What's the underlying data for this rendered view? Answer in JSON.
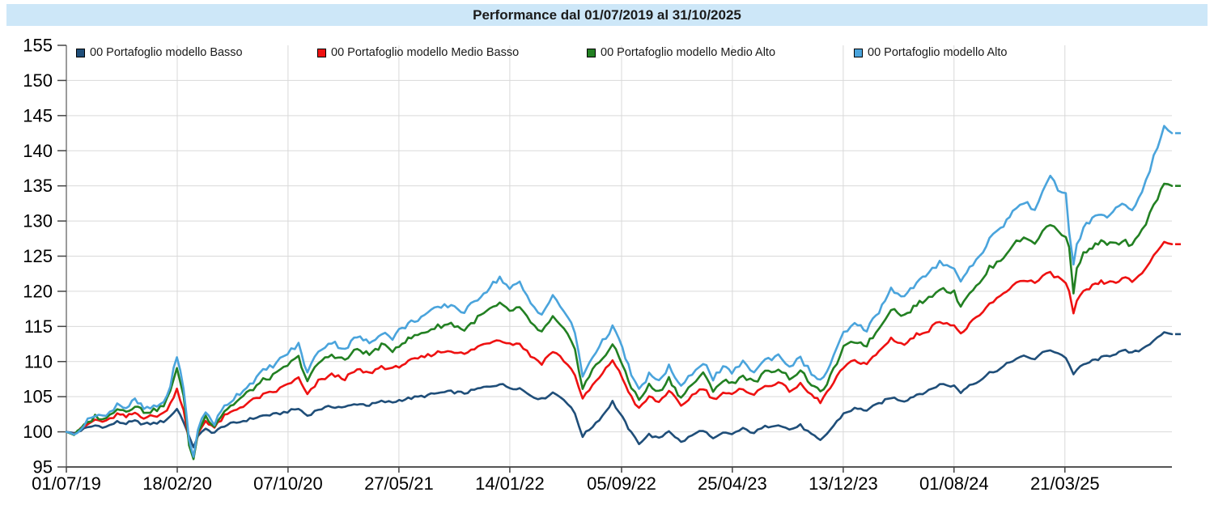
{
  "header": {
    "title": "Performance dal 01/07/2019 al 31/10/2025"
  },
  "style": {
    "page_bg": "#ffffff",
    "title_bg": "#cde7f8",
    "title_color": "#1b1b1b",
    "grid_color": "#d9d9d9",
    "axis_color": "#7a7a7a",
    "bottom_axis_color": "#555555",
    "tick_color": "#444444",
    "tick_label_color": "#000000",
    "legend_text_color": "#1a1a1a"
  },
  "legend": {
    "items": [
      {
        "label": "00 Portafoglio modello Basso",
        "color": "#1f4e79"
      },
      {
        "label": "00 Portafoglio modello Medio Basso",
        "color": "#ee1111"
      },
      {
        "label": "00 Portafoglio modello Medio Alto",
        "color": "#228022"
      },
      {
        "label": "00 Portafoglio modello Alto",
        "color": "#4aa4dc"
      }
    ]
  },
  "chart_data": {
    "type": "line",
    "title": "Performance dal 01/07/2019 al 31/10/2025",
    "x_mode": "fraction_of_date_span",
    "span": {
      "start": "01/07/2019",
      "end": "31/10/2025"
    },
    "ylim": [
      95,
      155
    ],
    "y_ticks": [
      95,
      100,
      105,
      110,
      115,
      120,
      125,
      130,
      135,
      140,
      145,
      150,
      155
    ],
    "grid": true,
    "legend_position": "top-inside",
    "x_ticks": [
      {
        "label": "01/07/19",
        "f": 0.0
      },
      {
        "label": "18/02/20",
        "f": 0.1003
      },
      {
        "label": "07/10/20",
        "f": 0.2005
      },
      {
        "label": "27/05/21",
        "f": 0.3008
      },
      {
        "label": "14/01/22",
        "f": 0.4011
      },
      {
        "label": "05/09/22",
        "f": 0.5022
      },
      {
        "label": "25/04/23",
        "f": 0.6024
      },
      {
        "label": "13/12/23",
        "f": 0.7027
      },
      {
        "label": "01/08/24",
        "f": 0.8029
      },
      {
        "label": "21/03/25",
        "f": 0.9032
      }
    ],
    "x": [
      0.0,
      0.007,
      0.016,
      0.026,
      0.036,
      0.046,
      0.054,
      0.062,
      0.07,
      0.079,
      0.088,
      0.094,
      0.1,
      0.106,
      0.111,
      0.115,
      0.119,
      0.126,
      0.134,
      0.143,
      0.154,
      0.166,
      0.178,
      0.19,
      0.2,
      0.21,
      0.218,
      0.228,
      0.24,
      0.252,
      0.263,
      0.274,
      0.285,
      0.295,
      0.301,
      0.312,
      0.324,
      0.336,
      0.348,
      0.36,
      0.372,
      0.383,
      0.392,
      0.401,
      0.41,
      0.42,
      0.43,
      0.44,
      0.45,
      0.46,
      0.467,
      0.476,
      0.485,
      0.494,
      0.503,
      0.511,
      0.518,
      0.527,
      0.536,
      0.545,
      0.556,
      0.566,
      0.576,
      0.585,
      0.594,
      0.602,
      0.612,
      0.622,
      0.632,
      0.644,
      0.654,
      0.664,
      0.674,
      0.682,
      0.691,
      0.703,
      0.713,
      0.724,
      0.735,
      0.746,
      0.758,
      0.769,
      0.78,
      0.79,
      0.803,
      0.809,
      0.817,
      0.826,
      0.835,
      0.845,
      0.856,
      0.866,
      0.876,
      0.883,
      0.89,
      0.897,
      0.904,
      0.907,
      0.911,
      0.914,
      0.92,
      0.928,
      0.936,
      0.944,
      0.952,
      0.958,
      0.964,
      0.973,
      0.98,
      0.987,
      0.993,
      1.0
    ],
    "series": [
      {
        "name": "00 Portafoglio modello Basso",
        "color": "#1f4e79",
        "jitter": 0.2,
        "values": [
          100.0,
          99.8,
          100.4,
          100.9,
          100.7,
          101.4,
          101.2,
          101.5,
          101.1,
          101.2,
          101.5,
          102.2,
          103.3,
          101.5,
          99.2,
          97.9,
          99.5,
          100.3,
          99.9,
          100.9,
          101.3,
          101.8,
          102.3,
          102.5,
          102.9,
          103.3,
          102.3,
          103.2,
          103.6,
          103.5,
          104.0,
          103.8,
          104.3,
          104.2,
          104.5,
          104.8,
          105.1,
          105.5,
          105.7,
          105.5,
          106.1,
          106.5,
          106.8,
          106.3,
          106.2,
          105.2,
          104.6,
          105.6,
          104.7,
          102.6,
          99.4,
          100.8,
          102.3,
          104.3,
          102.0,
          99.8,
          98.4,
          99.6,
          99.0,
          100.2,
          98.5,
          99.5,
          100.3,
          98.9,
          99.8,
          99.7,
          100.4,
          99.9,
          100.7,
          101.1,
          100.3,
          100.9,
          99.6,
          98.7,
          100.3,
          102.6,
          103.3,
          103.1,
          104.0,
          104.9,
          104.4,
          105.3,
          105.8,
          106.8,
          106.5,
          105.6,
          106.7,
          107.3,
          108.4,
          109.0,
          110.2,
          110.7,
          110.4,
          111.2,
          111.7,
          111.2,
          110.6,
          109.5,
          108.3,
          108.8,
          109.5,
          110.1,
          110.5,
          110.9,
          111.3,
          111.5,
          111.2,
          111.8,
          112.6,
          113.5,
          114.1,
          113.9
        ]
      },
      {
        "name": "00 Portafoglio modello Medio Basso",
        "color": "#ee1111",
        "jitter": 0.27,
        "values": [
          100.0,
          99.7,
          100.7,
          101.7,
          101.4,
          102.5,
          102.1,
          102.7,
          102.1,
          102.2,
          102.6,
          104.0,
          106.2,
          103.0,
          98.5,
          96.3,
          99.8,
          101.6,
          100.6,
          102.2,
          103.2,
          104.3,
          105.2,
          105.8,
          106.8,
          107.6,
          105.2,
          107.2,
          108.1,
          107.6,
          108.8,
          108.3,
          109.3,
          108.9,
          109.4,
          110.1,
          110.7,
          111.3,
          111.6,
          111.0,
          112.1,
          112.8,
          113.2,
          112.5,
          112.6,
          110.8,
          109.8,
          111.5,
          110.2,
          108.2,
          104.6,
          106.6,
          108.2,
          110.3,
          107.6,
          105.0,
          103.2,
          105.0,
          104.2,
          105.9,
          103.6,
          105.2,
          106.3,
          104.6,
          105.6,
          105.2,
          106.2,
          105.3,
          106.5,
          107.0,
          105.9,
          106.7,
          105.2,
          104.3,
          106.2,
          109.2,
          110.1,
          109.7,
          111.4,
          113.3,
          112.4,
          113.8,
          114.5,
          115.8,
          115.2,
          113.8,
          115.4,
          116.4,
          118.2,
          119.2,
          120.9,
          121.7,
          121.2,
          122.0,
          122.6,
          121.9,
          121.2,
          120.0,
          116.7,
          118.5,
          119.8,
          120.7,
          121.3,
          121.2,
          121.5,
          121.8,
          121.4,
          122.6,
          124.2,
          125.8,
          127.0,
          126.7
        ]
      },
      {
        "name": "00 Portafoglio modello Medio Alto",
        "color": "#228022",
        "jitter": 0.33,
        "values": [
          100.0,
          99.6,
          100.8,
          102.2,
          101.8,
          103.5,
          102.9,
          103.8,
          102.9,
          103.0,
          103.7,
          105.6,
          109.3,
          105.0,
          98.3,
          96.0,
          100.0,
          102.2,
          100.9,
          103.0,
          104.3,
          105.8,
          107.3,
          108.2,
          109.5,
          110.6,
          107.2,
          109.8,
          111.0,
          110.2,
          111.8,
          111.0,
          112.3,
          111.6,
          112.4,
          113.4,
          114.2,
          115.0,
          115.4,
          114.5,
          116.2,
          117.4,
          118.1,
          117.2,
          117.7,
          115.4,
          114.2,
          116.2,
          114.5,
          111.9,
          106.2,
          108.8,
          110.5,
          112.4,
          109.6,
          106.4,
          104.5,
          106.6,
          105.6,
          107.6,
          104.8,
          106.8,
          108.2,
          106.0,
          107.3,
          106.9,
          108.0,
          107.0,
          108.4,
          109.0,
          107.7,
          108.6,
          106.8,
          105.5,
          107.8,
          111.9,
          112.9,
          112.4,
          114.7,
          117.6,
          116.5,
          118.1,
          119.0,
          120.5,
          119.8,
          118.0,
          119.9,
          121.0,
          123.3,
          124.4,
          126.6,
          127.6,
          127.0,
          128.4,
          129.6,
          128.6,
          127.8,
          126.0,
          120.0,
          123.5,
          125.3,
          126.3,
          127.0,
          126.8,
          126.7,
          127.0,
          126.4,
          128.6,
          131.0,
          133.3,
          135.4,
          135.0
        ]
      },
      {
        "name": "00 Portafoglio modello Alto",
        "color": "#4aa4dc",
        "jitter": 0.38,
        "values": [
          100.0,
          99.6,
          101.0,
          102.6,
          102.1,
          104.1,
          103.4,
          104.5,
          103.3,
          103.4,
          104.2,
          106.5,
          111.0,
          106.0,
          99.0,
          96.4,
          100.5,
          102.8,
          101.2,
          103.6,
          105.2,
          106.8,
          108.6,
          109.8,
          111.2,
          112.4,
          108.4,
          111.6,
          112.8,
          111.8,
          113.6,
          112.6,
          114.2,
          113.4,
          114.4,
          115.6,
          116.6,
          117.6,
          118.1,
          117.0,
          119.0,
          120.6,
          122.0,
          120.3,
          121.2,
          118.3,
          116.8,
          119.2,
          117.3,
          114.2,
          107.9,
          110.8,
          112.8,
          115.0,
          111.8,
          108.2,
          105.8,
          108.2,
          107.0,
          109.4,
          106.2,
          108.4,
          110.0,
          107.6,
          109.0,
          108.6,
          109.8,
          108.6,
          110.2,
          110.9,
          109.4,
          110.4,
          108.4,
          107.1,
          109.6,
          114.0,
          115.2,
          114.6,
          117.2,
          120.4,
          119.2,
          121.2,
          122.4,
          124.2,
          123.4,
          121.2,
          123.6,
          124.8,
          127.6,
          128.8,
          131.4,
          132.6,
          131.8,
          134.4,
          136.1,
          134.6,
          133.8,
          128.5,
          123.9,
          126.5,
          129.0,
          130.3,
          131.0,
          130.7,
          132.0,
          132.3,
          131.4,
          134.3,
          137.4,
          140.6,
          143.4,
          142.5
        ]
      }
    ]
  }
}
